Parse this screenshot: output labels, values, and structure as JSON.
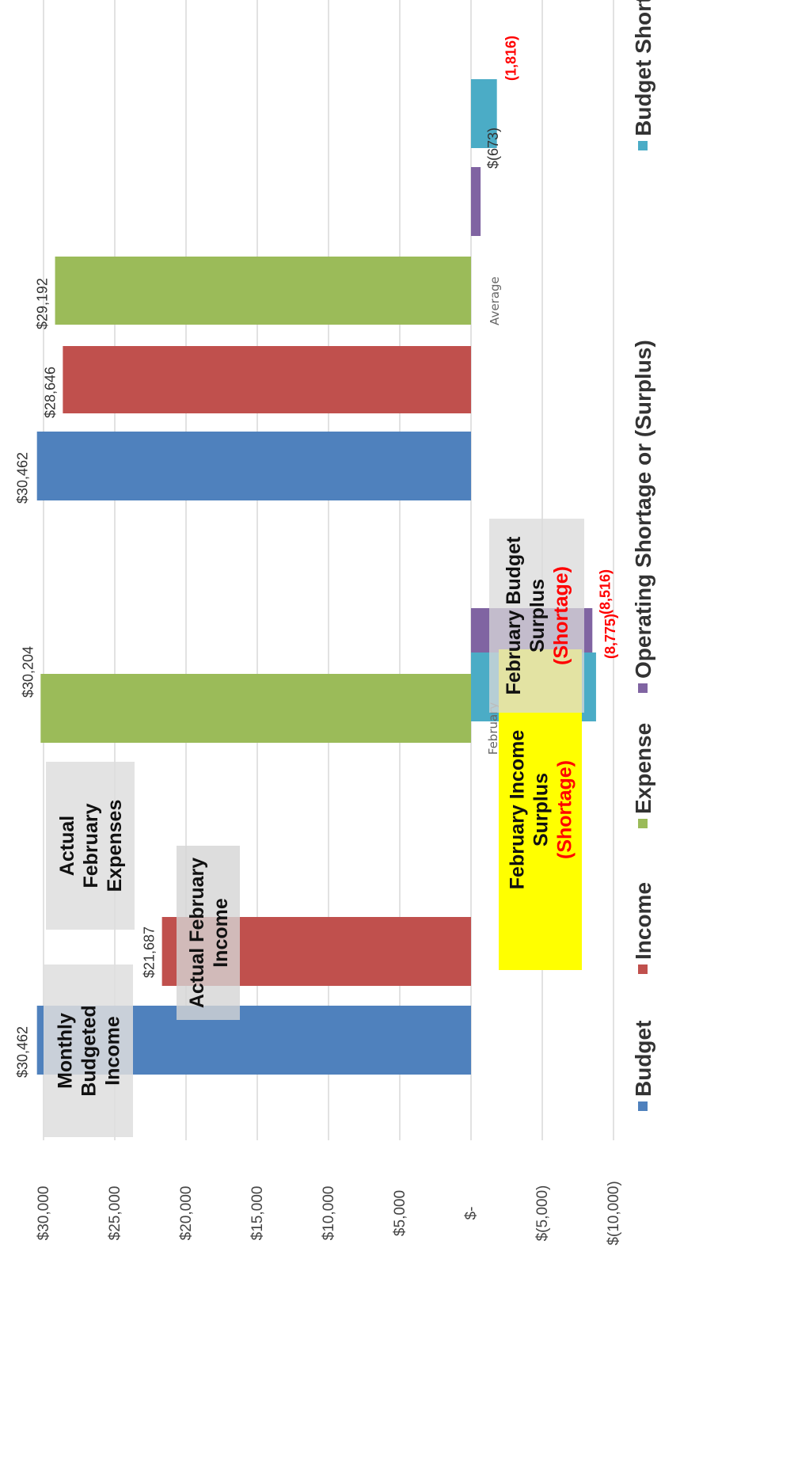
{
  "chart_data": {
    "type": "bar",
    "orientation": "vertical bars, rotated page",
    "categories": [
      "February",
      "Average"
    ],
    "series": [
      {
        "name": "Budget",
        "color": "#4f81bd",
        "values": [
          30462,
          30462
        ],
        "labels": [
          "$30,462",
          "$30,462"
        ]
      },
      {
        "name": "Income",
        "color": "#c0504d",
        "values": [
          21687,
          28646
        ],
        "labels": [
          "$21,687",
          "$28,646"
        ]
      },
      {
        "name": "Expense",
        "color": "#9bbb59",
        "values": [
          30204,
          29192
        ],
        "labels": [
          "$30,204",
          "$29,192"
        ]
      },
      {
        "name": "Operating Shortage or  (Surplus)",
        "color": "#8064a2",
        "values": [
          -8516,
          -673
        ],
        "labels": [
          "(8,516)",
          "$(673)"
        ]
      },
      {
        "name": "Budget Shortage",
        "color": "#4bacc6",
        "values": [
          -8775,
          -1816
        ],
        "labels": [
          "(8,775)",
          "(1,816)"
        ]
      }
    ],
    "y_ticks": [
      {
        "value": 30000,
        "label": "$30,000"
      },
      {
        "value": 25000,
        "label": "$25,000"
      },
      {
        "value": 20000,
        "label": "$20,000"
      },
      {
        "value": 15000,
        "label": "$15,000"
      },
      {
        "value": 10000,
        "label": "$10,000"
      },
      {
        "value": 5000,
        "label": "$5,000"
      },
      {
        "value": 0,
        "label": "$-"
      },
      {
        "value": -5000,
        "label": "$(5,000)"
      },
      {
        "value": -10000,
        "label": "$(10,000)"
      }
    ],
    "ylim": [
      -10000,
      30000
    ],
    "grid": true,
    "legend_position": "bottom",
    "annotations": [
      {
        "id": "monthly-budgeted-income",
        "lines": [
          "Monthly",
          "Budgeted",
          "Income"
        ],
        "style": "gray-box"
      },
      {
        "id": "actual-february-income",
        "lines": [
          "Actual February",
          "Income"
        ],
        "style": "gray-box"
      },
      {
        "id": "actual-february-expenses",
        "lines": [
          "Actual",
          "February",
          "Expenses"
        ],
        "style": "gray-box"
      },
      {
        "id": "february-income-surplus",
        "lines": [
          "February  Income",
          "Surplus",
          "(Shortage)"
        ],
        "red_line": 2,
        "style": "yellow-box"
      },
      {
        "id": "february-budget-surplus",
        "lines": [
          "February Budget",
          "Surplus",
          "(Shortage)"
        ],
        "red_line": 2,
        "style": "gray-box"
      }
    ]
  }
}
